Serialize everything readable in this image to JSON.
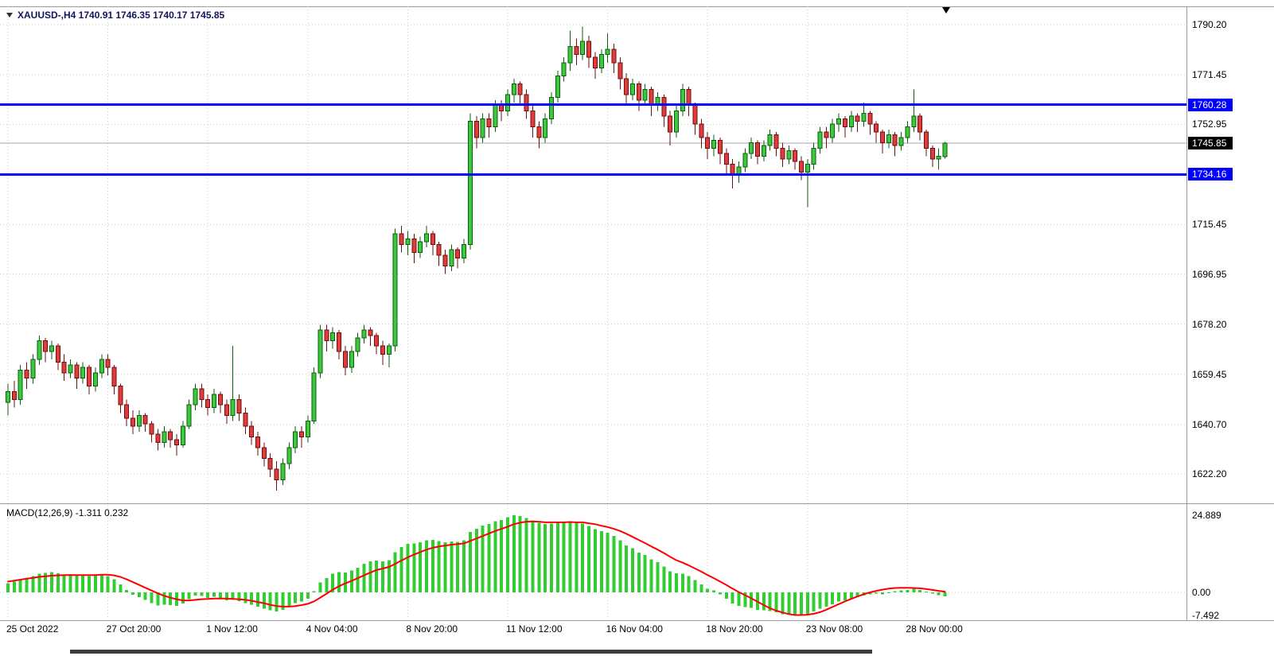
{
  "header": {
    "title": "XAUUSD-,H4 1740.91 1746.35 1740.17 1745.85"
  },
  "colors": {
    "background": "#ffffff",
    "grid": "#cdcdcd",
    "bull_fill": "#3dc93d",
    "bull_border": "#0e5c0e",
    "bear_fill": "#e23b3b",
    "bear_border": "#6e0f0f",
    "level_line": "#0000ff",
    "current_price_line": "#a8a8a8",
    "current_badge_bg": "#000000",
    "histogram": "#32cd32",
    "signal": "#ff0000",
    "title_text": "#15155e"
  },
  "chart_data": {
    "type": "candlestick",
    "symbol": "XAUUSD-",
    "timeframe": "H4",
    "current_bar": {
      "open": 1740.91,
      "high": 1746.35,
      "low": 1740.17,
      "close": 1745.85
    },
    "current_price": 1745.85,
    "current_price_label": "1745.85",
    "price_axis": {
      "gridlines": [
        "1790.20",
        "1771.45",
        "1752.95",
        "1715.45",
        "1696.95",
        "1678.20",
        "1659.45",
        "1640.70",
        "1622.20"
      ]
    },
    "hlines": [
      {
        "value": 1760.28,
        "label": "1760.28",
        "color": "#0000ff"
      },
      {
        "value": 1734.16,
        "label": "1734.16",
        "color": "#0000ff"
      }
    ],
    "x_axis": {
      "ticks": [
        {
          "index": 0,
          "label": "25 Oct 2022"
        },
        {
          "index": 16,
          "label": "27 Oct 20:00"
        },
        {
          "index": 32,
          "label": "1 Nov 12:00"
        },
        {
          "index": 48,
          "label": "4 Nov 04:00"
        },
        {
          "index": 64,
          "label": "8 Nov 20:00"
        },
        {
          "index": 80,
          "label": "11 Nov 12:00"
        },
        {
          "index": 96,
          "label": "16 Nov 04:00"
        },
        {
          "index": 112,
          "label": "18 Nov 20:00"
        },
        {
          "index": 128,
          "label": "23 Nov 08:00"
        },
        {
          "index": 144,
          "label": "28 Nov 00:00"
        }
      ]
    },
    "candles": [
      [
        1649,
        1656,
        1644,
        1653
      ],
      [
        1653,
        1657,
        1647,
        1650
      ],
      [
        1650,
        1663,
        1648,
        1661
      ],
      [
        1661,
        1664,
        1654,
        1658
      ],
      [
        1658,
        1667,
        1656,
        1665
      ],
      [
        1665,
        1674,
        1663,
        1672
      ],
      [
        1672,
        1673,
        1664,
        1668
      ],
      [
        1668,
        1672,
        1665,
        1670
      ],
      [
        1670,
        1671,
        1661,
        1664
      ],
      [
        1664,
        1667,
        1657,
        1660
      ],
      [
        1660,
        1665,
        1658,
        1663
      ],
      [
        1663,
        1664,
        1654,
        1658
      ],
      [
        1658,
        1664,
        1656,
        1662
      ],
      [
        1662,
        1663,
        1652,
        1655
      ],
      [
        1655,
        1662,
        1653,
        1660
      ],
      [
        1660,
        1667,
        1658,
        1665
      ],
      [
        1665,
        1667,
        1659,
        1662
      ],
      [
        1662,
        1663,
        1652,
        1655
      ],
      [
        1655,
        1656,
        1645,
        1648
      ],
      [
        1648,
        1650,
        1640,
        1643
      ],
      [
        1643,
        1646,
        1637,
        1640
      ],
      [
        1640,
        1646,
        1638,
        1644
      ],
      [
        1644,
        1645,
        1638,
        1641
      ],
      [
        1641,
        1642,
        1634,
        1637
      ],
      [
        1637,
        1639,
        1631,
        1634
      ],
      [
        1634,
        1640,
        1632,
        1638
      ],
      [
        1638,
        1639,
        1632,
        1635
      ],
      [
        1635,
        1637,
        1629,
        1633
      ],
      [
        1633,
        1642,
        1632,
        1640
      ],
      [
        1640,
        1650,
        1639,
        1648
      ],
      [
        1648,
        1656,
        1646,
        1654
      ],
      [
        1654,
        1656,
        1647,
        1650
      ],
      [
        1650,
        1652,
        1644,
        1647
      ],
      [
        1647,
        1654,
        1645,
        1652
      ],
      [
        1652,
        1653,
        1645,
        1648
      ],
      [
        1648,
        1650,
        1641,
        1644
      ],
      [
        1644,
        1670,
        1642,
        1650
      ],
      [
        1650,
        1652,
        1642,
        1645
      ],
      [
        1645,
        1647,
        1637,
        1640
      ],
      [
        1640,
        1642,
        1633,
        1636
      ],
      [
        1636,
        1638,
        1629,
        1632
      ],
      [
        1632,
        1634,
        1625,
        1628
      ],
      [
        1628,
        1630,
        1621,
        1624
      ],
      [
        1624,
        1627,
        1616,
        1620
      ],
      [
        1620,
        1628,
        1618,
        1626
      ],
      [
        1626,
        1634,
        1624,
        1632
      ],
      [
        1632,
        1640,
        1630,
        1638
      ],
      [
        1638,
        1640,
        1632,
        1636
      ],
      [
        1636,
        1644,
        1634,
        1642
      ],
      [
        1642,
        1662,
        1641,
        1660
      ],
      [
        1660,
        1678,
        1658,
        1676
      ],
      [
        1676,
        1678,
        1668,
        1672
      ],
      [
        1672,
        1677,
        1669,
        1675
      ],
      [
        1675,
        1676,
        1665,
        1668
      ],
      [
        1668,
        1670,
        1659,
        1662
      ],
      [
        1662,
        1670,
        1660,
        1668
      ],
      [
        1668,
        1675,
        1666,
        1673
      ],
      [
        1673,
        1678,
        1671,
        1676
      ],
      [
        1676,
        1677,
        1670,
        1674
      ],
      [
        1674,
        1675,
        1667,
        1670
      ],
      [
        1670,
        1672,
        1663,
        1667
      ],
      [
        1667,
        1671,
        1662,
        1670
      ],
      [
        1670,
        1714,
        1668,
        1712
      ],
      [
        1712,
        1715,
        1705,
        1708
      ],
      [
        1708,
        1713,
        1704,
        1710
      ],
      [
        1710,
        1712,
        1701,
        1705
      ],
      [
        1705,
        1711,
        1703,
        1709
      ],
      [
        1709,
        1715,
        1707,
        1712
      ],
      [
        1712,
        1713,
        1704,
        1708
      ],
      [
        1708,
        1709,
        1700,
        1704
      ],
      [
        1704,
        1706,
        1697,
        1700
      ],
      [
        1700,
        1708,
        1698,
        1706
      ],
      [
        1706,
        1707,
        1699,
        1703
      ],
      [
        1703,
        1710,
        1701,
        1708
      ],
      [
        1708,
        1757,
        1706,
        1754
      ],
      [
        1754,
        1756,
        1744,
        1748
      ],
      [
        1748,
        1757,
        1746,
        1755
      ],
      [
        1755,
        1757,
        1748,
        1752
      ],
      [
        1752,
        1762,
        1750,
        1760
      ],
      [
        1760,
        1762,
        1754,
        1758
      ],
      [
        1758,
        1766,
        1756,
        1764
      ],
      [
        1764,
        1770,
        1761,
        1768
      ],
      [
        1768,
        1769,
        1760,
        1764
      ],
      [
        1764,
        1766,
        1755,
        1758
      ],
      [
        1758,
        1760,
        1748,
        1752
      ],
      [
        1752,
        1754,
        1744,
        1748
      ],
      [
        1748,
        1757,
        1746,
        1755
      ],
      [
        1755,
        1765,
        1753,
        1763
      ],
      [
        1763,
        1773,
        1761,
        1771
      ],
      [
        1771,
        1778,
        1769,
        1776
      ],
      [
        1776,
        1788,
        1773,
        1782
      ],
      [
        1782,
        1785,
        1775,
        1779
      ],
      [
        1779,
        1789.5,
        1777,
        1784
      ],
      [
        1784,
        1786,
        1774,
        1778
      ],
      [
        1778,
        1780,
        1770,
        1774
      ],
      [
        1774,
        1781,
        1772,
        1779
      ],
      [
        1779,
        1787,
        1776,
        1781
      ],
      [
        1781,
        1783,
        1772,
        1776
      ],
      [
        1776,
        1778,
        1766,
        1770
      ],
      [
        1770,
        1772,
        1760,
        1764
      ],
      [
        1764,
        1770,
        1762,
        1768
      ],
      [
        1768,
        1769,
        1758,
        1762
      ],
      [
        1762,
        1768,
        1760,
        1766
      ],
      [
        1766,
        1767,
        1756,
        1760
      ],
      [
        1760,
        1765,
        1758,
        1763
      ],
      [
        1763,
        1764,
        1752,
        1756
      ],
      [
        1756,
        1758,
        1745,
        1750
      ],
      [
        1750,
        1760,
        1748,
        1758
      ],
      [
        1758,
        1768,
        1756,
        1766
      ],
      [
        1766,
        1767,
        1756,
        1760
      ],
      [
        1760,
        1761,
        1749,
        1753
      ],
      [
        1753,
        1755,
        1744,
        1748
      ],
      [
        1748,
        1750,
        1740,
        1744
      ],
      [
        1744,
        1749,
        1741,
        1747
      ],
      [
        1747,
        1748,
        1738,
        1742
      ],
      [
        1742,
        1744,
        1734,
        1738
      ],
      [
        1738,
        1740,
        1729,
        1734
      ],
      [
        1734,
        1739,
        1731,
        1737
      ],
      [
        1737,
        1744,
        1735,
        1742
      ],
      [
        1742,
        1748,
        1740,
        1746
      ],
      [
        1746,
        1747,
        1738,
        1741
      ],
      [
        1741,
        1747,
        1739,
        1745
      ],
      [
        1745,
        1751,
        1743,
        1749
      ],
      [
        1749,
        1750,
        1741,
        1744
      ],
      [
        1744,
        1746,
        1737,
        1740
      ],
      [
        1740,
        1745,
        1738,
        1743
      ],
      [
        1743,
        1744,
        1736,
        1739
      ],
      [
        1739,
        1741,
        1732,
        1735
      ],
      [
        1735,
        1740,
        1722,
        1738
      ],
      [
        1738,
        1746,
        1736,
        1744
      ],
      [
        1744,
        1752,
        1742,
        1750
      ],
      [
        1750,
        1752,
        1744,
        1748
      ],
      [
        1748,
        1755,
        1746,
        1753
      ],
      [
        1753,
        1757,
        1750,
        1755
      ],
      [
        1755,
        1756,
        1748,
        1752
      ],
      [
        1752,
        1758,
        1750,
        1756
      ],
      [
        1756,
        1757,
        1750,
        1754
      ],
      [
        1754,
        1761,
        1752,
        1757
      ],
      [
        1757,
        1758,
        1749,
        1753
      ],
      [
        1753,
        1754,
        1746,
        1750
      ],
      [
        1750,
        1751,
        1742,
        1746
      ],
      [
        1746,
        1751,
        1744,
        1749
      ],
      [
        1749,
        1750,
        1741,
        1745
      ],
      [
        1745,
        1750,
        1743,
        1748
      ],
      [
        1748,
        1754,
        1746,
        1752
      ],
      [
        1752,
        1766,
        1750,
        1756
      ],
      [
        1756,
        1757,
        1747,
        1750
      ],
      [
        1750,
        1751,
        1741,
        1744
      ],
      [
        1744,
        1745,
        1737,
        1740
      ],
      [
        1740,
        1744,
        1736,
        1741
      ],
      [
        1740.91,
        1746.35,
        1740.17,
        1745.85
      ]
    ],
    "macd": {
      "title": "MACD(12,26,9) -1.311 0.232",
      "label": "MACD(12,26,9)",
      "main_value": -1.311,
      "signal_value": 0.232,
      "axis_labels": [
        "24.889",
        "0.00",
        "-7.492"
      ],
      "histogram": [
        3.0,
        3.5,
        4.2,
        4.6,
        5.2,
        6.0,
        6.3,
        6.5,
        6.2,
        5.8,
        5.9,
        5.5,
        5.6,
        5.2,
        5.4,
        5.8,
        5.3,
        4.2,
        2.6,
        0.8,
        -0.8,
        -1.6,
        -2.4,
        -3.4,
        -4.2,
        -4.0,
        -4.1,
        -4.4,
        -3.6,
        -2.2,
        -1.0,
        -1.2,
        -1.8,
        -1.4,
        -1.8,
        -2.6,
        -2.2,
        -2.8,
        -3.4,
        -4.0,
        -4.6,
        -5.2,
        -5.8,
        -6.2,
        -5.6,
        -4.6,
        -3.4,
        -3.0,
        -2.0,
        0.4,
        3.2,
        4.6,
        6.0,
        6.6,
        6.4,
        7.0,
        8.0,
        9.2,
        10.0,
        10.2,
        10.0,
        10.4,
        13.0,
        14.6,
        15.6,
        15.8,
        16.2,
        16.8,
        16.9,
        16.6,
        16.2,
        16.4,
        16.3,
        16.8,
        19.5,
        20.5,
        21.5,
        22.0,
        23.0,
        23.4,
        24.2,
        24.889,
        24.6,
        24.0,
        23.2,
        22.4,
        22.0,
        22.2,
        22.6,
        22.8,
        23.0,
        22.4,
        22.2,
        21.4,
        20.4,
        19.8,
        19.2,
        18.2,
        16.8,
        15.2,
        14.2,
        12.8,
        12.0,
        10.6,
        9.8,
        8.4,
        6.8,
        6.2,
        6.0,
        5.2,
        4.0,
        2.6,
        1.2,
        0.6,
        -0.6,
        -2.0,
        -3.6,
        -4.4,
        -4.8,
        -5.0,
        -5.6,
        -5.8,
        -6.0,
        -6.4,
        -7.0,
        -7.2,
        -7.492,
        -7.4,
        -7.0,
        -6.2,
        -5.2,
        -4.6,
        -3.8,
        -3.0,
        -2.6,
        -2.0,
        -1.6,
        -1.0,
        -0.6,
        -0.4,
        -0.6,
        -0.2,
        0.4,
        0.6,
        0.8,
        1.2,
        0.8,
        0.2,
        -0.4,
        -0.9,
        -1.311
      ],
      "signal": [
        3.5,
        3.8,
        4.1,
        4.4,
        4.7,
        5.0,
        5.2,
        5.4,
        5.5,
        5.6,
        5.6,
        5.6,
        5.6,
        5.6,
        5.6,
        5.7,
        5.7,
        5.5,
        5.0,
        4.2,
        3.3,
        2.4,
        1.5,
        0.6,
        -0.3,
        -1.1,
        -1.7,
        -2.2,
        -2.6,
        -2.6,
        -2.4,
        -2.2,
        -2.1,
        -2.0,
        -2.0,
        -2.0,
        -2.1,
        -2.2,
        -2.4,
        -2.7,
        -3.1,
        -3.5,
        -4.0,
        -4.4,
        -4.6,
        -4.6,
        -4.4,
        -4.1,
        -3.7,
        -2.9,
        -1.7,
        -0.4,
        0.9,
        2.0,
        2.9,
        3.7,
        4.6,
        5.5,
        6.4,
        7.2,
        7.7,
        8.2,
        9.2,
        10.3,
        11.3,
        12.2,
        13.0,
        13.8,
        14.4,
        14.8,
        15.1,
        15.4,
        15.6,
        15.8,
        16.6,
        17.4,
        18.2,
        19.0,
        19.8,
        20.5,
        21.2,
        22.0,
        22.5,
        22.8,
        22.9,
        22.8,
        22.6,
        22.6,
        22.6,
        22.6,
        22.7,
        22.6,
        22.6,
        22.3,
        22.0,
        21.5,
        21.1,
        20.5,
        19.8,
        18.9,
        17.9,
        16.9,
        15.9,
        14.8,
        13.8,
        12.7,
        11.5,
        10.4,
        9.6,
        8.7,
        7.7,
        6.7,
        5.6,
        4.6,
        3.5,
        2.4,
        1.2,
        0.1,
        -0.9,
        -1.9,
        -3.0,
        -4.1,
        -5.1,
        -5.9,
        -6.5,
        -7.0,
        -7.3,
        -7.3,
        -7.2,
        -6.9,
        -6.4,
        -5.6,
        -4.7,
        -3.8,
        -2.9,
        -2.1,
        -1.3,
        -0.6,
        0.0,
        0.5,
        0.9,
        1.2,
        1.4,
        1.5,
        1.5,
        1.4,
        1.3,
        1.1,
        0.8,
        0.5,
        0.232
      ]
    }
  }
}
